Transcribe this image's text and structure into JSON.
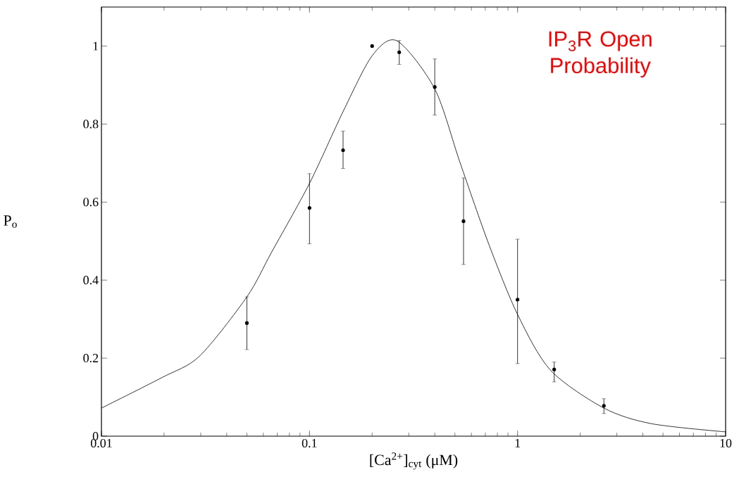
{
  "chart_data": {
    "type": "scatter",
    "xlabel": "[Ca$^{2+}$]$_{cyt}$ (μM)",
    "ylabel": "P$_{o}$",
    "annotations": [
      "IP$_{3}$R Open Probability"
    ],
    "log": "x",
    "xlim": [
      0.01,
      10
    ],
    "xticks": [
      0.01,
      0.1,
      1,
      10
    ],
    "ylim": [
      0,
      1.1
    ],
    "yticks": [
      0,
      0.2,
      0.4,
      0.6,
      0.8,
      1
    ],
    "series": [
      {
        "color": "#000000",
        "marker": "circle",
        "x": [
          0.05,
          0.1,
          0.145,
          0.2,
          0.27,
          0.4,
          0.55,
          1,
          1.5,
          2.6
        ],
        "values": [
          0.29,
          0.585,
          0.733,
          1.0,
          0.984,
          0.895,
          0.551,
          0.35,
          0.171,
          0.078
        ],
        "errors": [
          [
            0.222,
            0.357
          ],
          [
            0.493,
            0.673
          ],
          [
            0.686,
            0.782
          ],
          null,
          [
            0.953,
            1.014
          ],
          [
            0.823,
            0.967
          ],
          [
            0.44,
            0.662
          ],
          [
            0.186,
            0.505
          ],
          [
            0.139,
            0.19
          ],
          [
            0.058,
            0.096
          ]
        ]
      },
      {
        "type": "line",
        "color": "#000000",
        "marker": "none",
        "x": [
          0.01,
          0.0195,
          0.0296,
          0.05,
          0.0655,
          0.1,
          0.145,
          0.2,
          0.264,
          0.4,
          0.53,
          0.73,
          1.0,
          1.44,
          2.6,
          4.4,
          10
        ],
        "values": [
          0.072,
          0.15,
          0.205,
          0.357,
          0.47,
          0.648,
          0.832,
          0.975,
          1.013,
          0.89,
          0.7,
          0.49,
          0.312,
          0.169,
          0.072,
          0.032,
          0.011
        ]
      }
    ]
  }
}
